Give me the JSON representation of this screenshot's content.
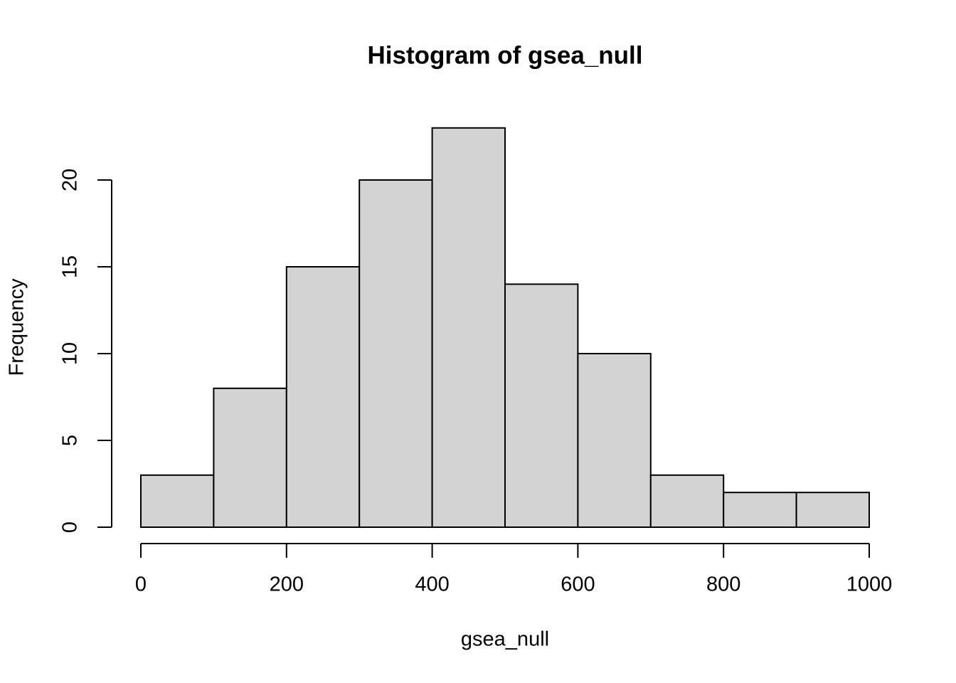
{
  "chart_data": {
    "type": "histogram",
    "title": "Histogram of gsea_null",
    "xlabel": "gsea_null",
    "ylabel": "Frequency",
    "bins": [
      0,
      100,
      200,
      300,
      400,
      500,
      600,
      700,
      800,
      900,
      1000
    ],
    "values": [
      3,
      8,
      15,
      20,
      23,
      14,
      10,
      3,
      2,
      2
    ],
    "color": "#d3d3d3",
    "xlim": [
      0,
      1000
    ],
    "xticks": [
      0,
      200,
      400,
      600,
      800,
      1000
    ],
    "ylim": [
      0,
      23
    ],
    "yticks": [
      0,
      5,
      10,
      15,
      20
    ]
  }
}
